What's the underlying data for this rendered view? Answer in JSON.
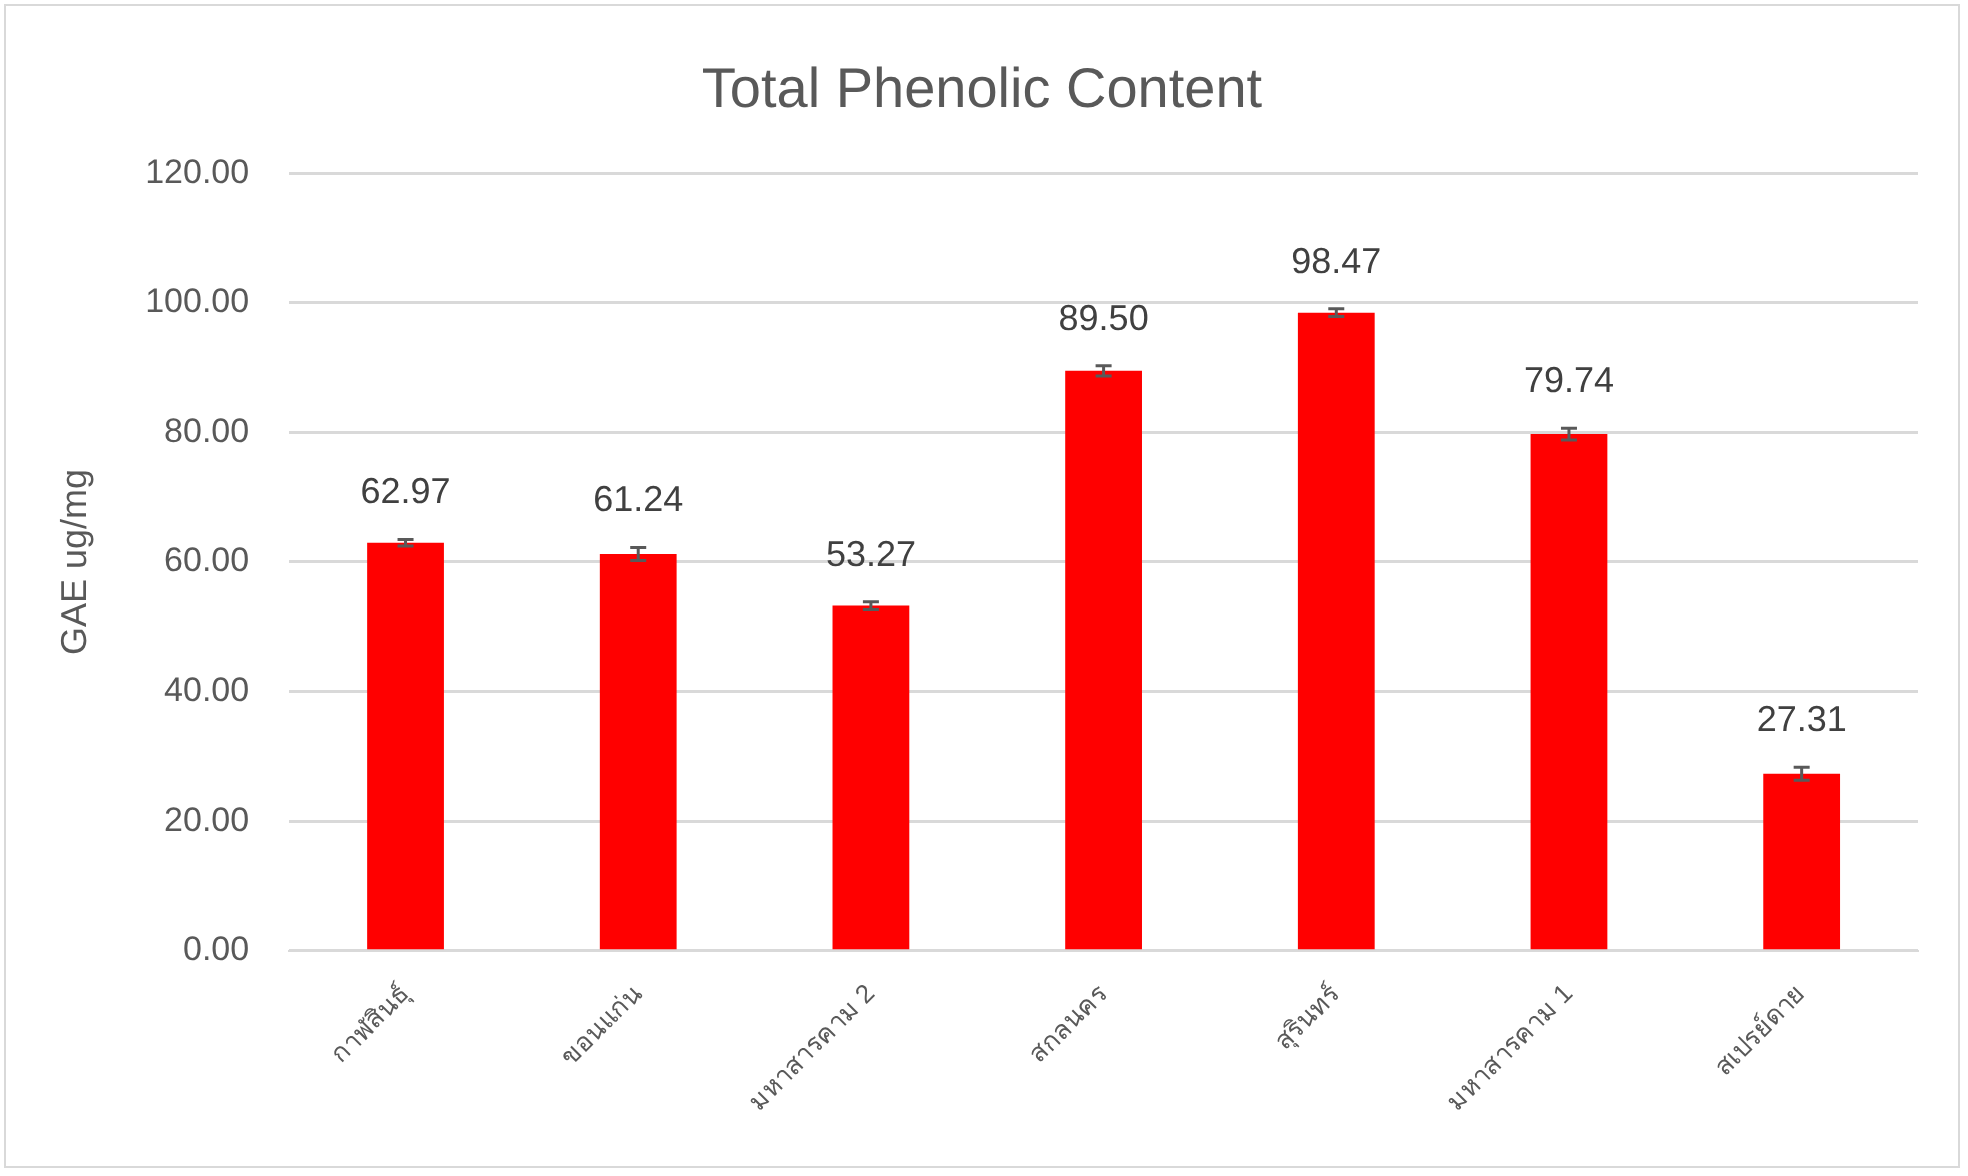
{
  "chart_data": {
    "type": "bar",
    "title": "Total Phenolic Content",
    "ylabel": "GAE ug/mg",
    "categories": [
      "กาฬสินธุ์",
      "ขอนแก่น",
      "มหาสารคาม 2",
      "สกลนคร",
      "สุรินทร์",
      "มหาสารคาม 1",
      "สเปรย์ดาย"
    ],
    "values": [
      62.97,
      61.24,
      53.27,
      89.5,
      98.47,
      79.74,
      27.31
    ],
    "errors": [
      0.5,
      1,
      0.6,
      0.8,
      0.6,
      0.9,
      1
    ],
    "value_labels": [
      "62.97",
      "61.24",
      "53.27",
      "89.50",
      "98.47",
      "79.74",
      "27.31"
    ],
    "color": "#ff0000",
    "ylim": [
      0,
      120
    ],
    "yticks": [
      {
        "value": 0,
        "label": "0.00"
      },
      {
        "value": 20,
        "label": "20.00"
      },
      {
        "value": 40,
        "label": "40.00"
      },
      {
        "value": 60,
        "label": "60.00"
      },
      {
        "value": 80,
        "label": "80.00"
      },
      {
        "value": 100,
        "label": "100.00"
      },
      {
        "value": 120,
        "label": "120.00"
      }
    ],
    "grid": "y",
    "legend": false
  }
}
